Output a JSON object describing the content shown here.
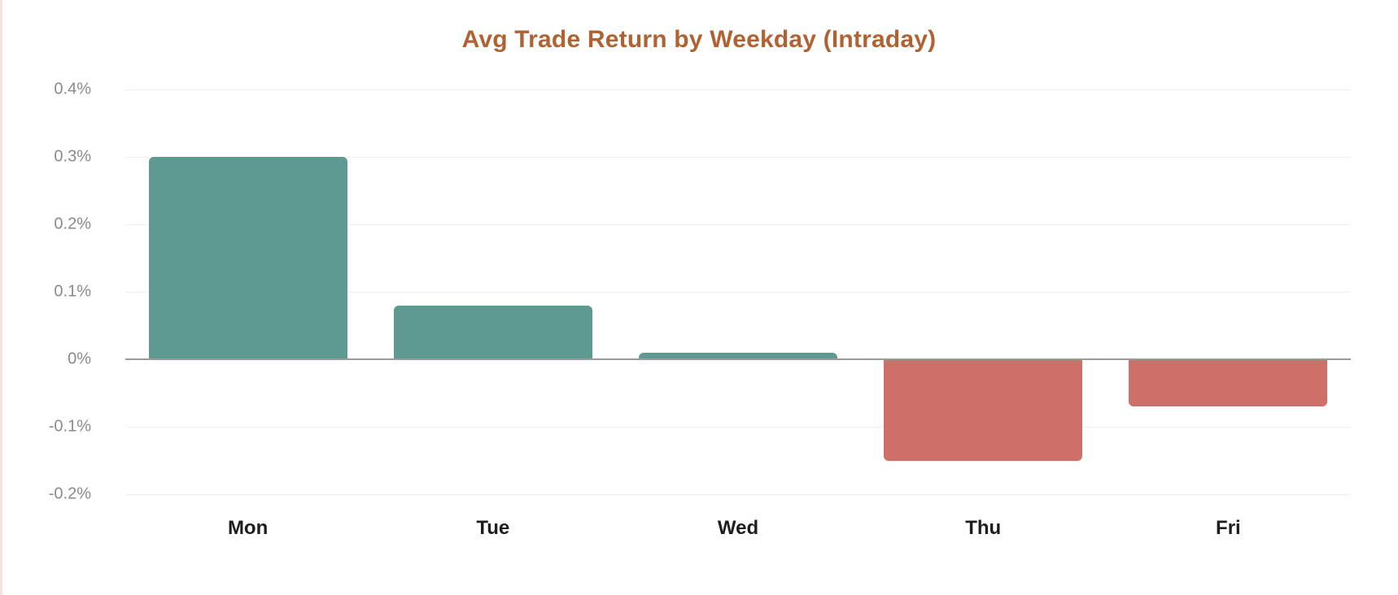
{
  "chart": {
    "title": "Avg Trade Return by Weekday (Intraday)",
    "title_color": "#b06232",
    "positive_color": "#5e9a91",
    "negative_color": "#cf6f69",
    "y_ticks": [
      "0.4%",
      "0.3%",
      "0.2%",
      "0.1%",
      "0%",
      "-0.1%",
      "-0.2%"
    ]
  },
  "chart_data": {
    "type": "bar",
    "title": "Avg Trade Return by Weekday (Intraday)",
    "xlabel": "",
    "ylabel": "",
    "categories": [
      "Mon",
      "Tue",
      "Wed",
      "Thu",
      "Fri"
    ],
    "values": [
      0.3,
      0.08,
      0.01,
      -0.15,
      -0.07
    ],
    "unit": "%",
    "ylim": [
      -0.2,
      0.4
    ],
    "y_tick_values": [
      0.4,
      0.3,
      0.2,
      0.1,
      0,
      -0.1,
      -0.2
    ],
    "grid": true,
    "legend": "none"
  }
}
